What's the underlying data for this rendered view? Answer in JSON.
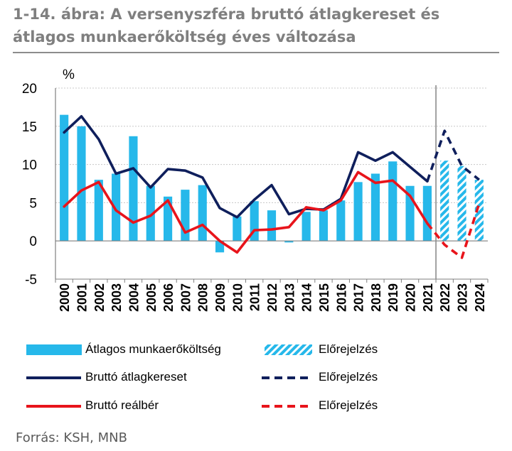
{
  "header": {
    "title": "1-14. ábra: A versenyszféra bruttó átlagkereset és átlagos munkaerőköltség éves változása"
  },
  "source": "Forrás: KSH, MNB",
  "colors": {
    "bar": "#26b8ea",
    "wage": "#0f1f5c",
    "real": "#e8141b",
    "grid": "#c8c8c8",
    "divider": "#8c8c8c"
  },
  "chart_data": {
    "type": "bar",
    "ylabel": "%",
    "ylim": [
      -5,
      20
    ],
    "yticks": [
      -5,
      0,
      5,
      10,
      15,
      20
    ],
    "grid": true,
    "legend_position": "bottom",
    "categories": [
      "2000",
      "2001",
      "2002",
      "2003",
      "2004",
      "2005",
      "2006",
      "2007",
      "2008",
      "2009",
      "2010",
      "2011",
      "2012",
      "2013",
      "2014",
      "2015",
      "2016",
      "2017",
      "2018",
      "2019",
      "2020",
      "2021",
      "2022",
      "2023",
      "2024"
    ],
    "forecast_start": "2022",
    "series": [
      {
        "name": "Átlagos munkaerőköltség",
        "kind": "bar",
        "values": [
          16.5,
          15.0,
          8.0,
          8.8,
          13.7,
          7.2,
          5.8,
          6.7,
          7.3,
          -1.5,
          3.2,
          5.2,
          4.0,
          -0.2,
          3.8,
          4.0,
          5.3,
          7.7,
          8.8,
          10.4,
          7.2,
          7.2,
          10.5,
          9.8,
          8.0
        ]
      },
      {
        "name": "Bruttó átlagkereset",
        "kind": "line",
        "values": [
          14.2,
          16.3,
          13.3,
          8.8,
          9.5,
          7.0,
          9.4,
          9.2,
          8.3,
          4.3,
          3.1,
          5.4,
          7.3,
          3.5,
          4.2,
          4.1,
          5.5,
          11.6,
          10.5,
          11.6,
          9.7,
          7.8,
          14.4,
          9.8,
          8.0
        ]
      },
      {
        "name": "Bruttó reálbér",
        "kind": "line",
        "values": [
          4.5,
          6.6,
          7.7,
          4.0,
          2.4,
          3.3,
          5.3,
          1.1,
          2.1,
          0.0,
          -1.5,
          1.4,
          1.5,
          1.8,
          4.4,
          4.0,
          5.3,
          9.0,
          7.6,
          7.9,
          5.9,
          2.3,
          -0.5,
          -2.2,
          4.9
        ]
      }
    ],
    "legend": [
      {
        "label": "Átlagos munkaerőköltség",
        "style": "bar"
      },
      {
        "label": "Előrejelzés",
        "style": "bar-hatched"
      },
      {
        "label": "Bruttó átlagkereset",
        "style": "line-navy"
      },
      {
        "label": "Előrejelzés",
        "style": "dashed-navy"
      },
      {
        "label": "Bruttó reálbér",
        "style": "line-red"
      },
      {
        "label": "Előrejelzés",
        "style": "dashed-red"
      }
    ]
  }
}
